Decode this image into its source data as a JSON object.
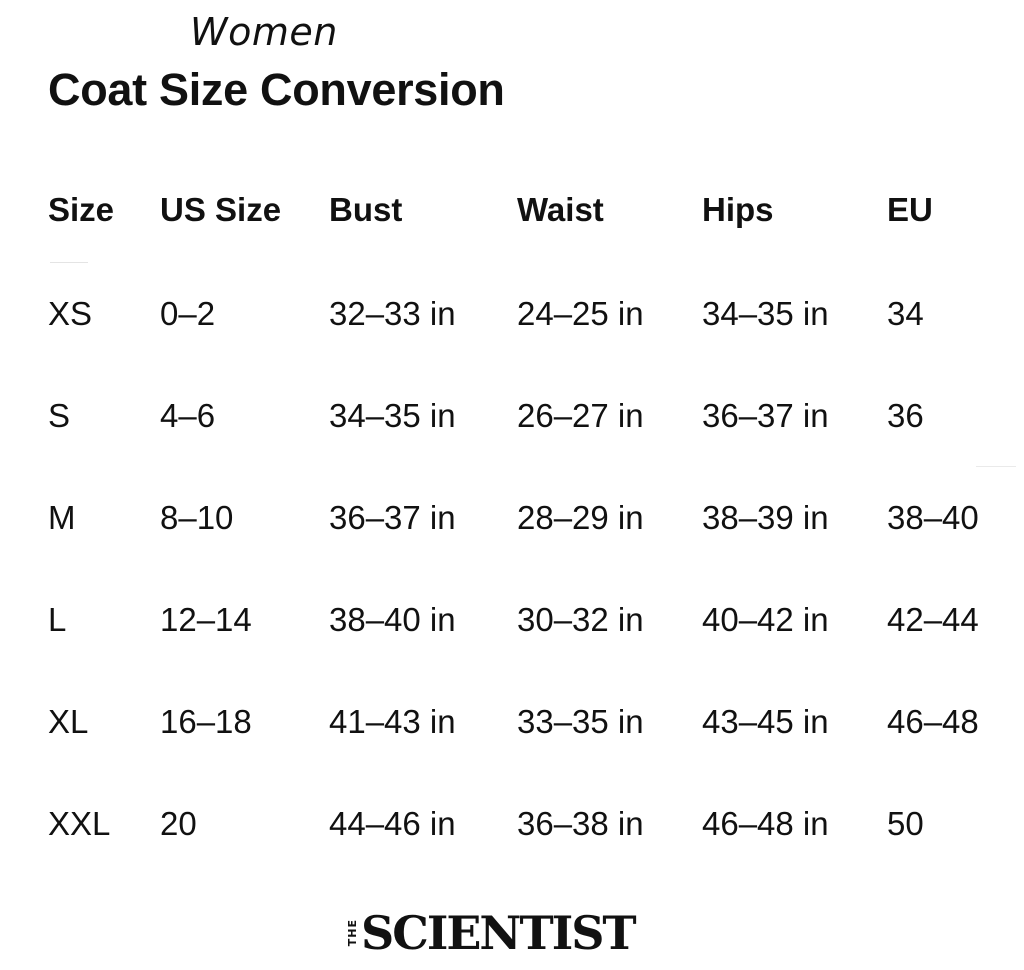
{
  "header": {
    "subtitle": "Women",
    "title": "Coat Size Conversion"
  },
  "table": {
    "columns": [
      "Size",
      "US Size",
      "Bust",
      "Waist",
      "Hips",
      "EU"
    ],
    "rows": [
      [
        "XS",
        "0–2",
        "32–33 in",
        "24–25 in",
        "34–35 in",
        "34"
      ],
      [
        "S",
        "4–6",
        "34–35 in",
        "26–27 in",
        "36–37 in",
        "36"
      ],
      [
        "M",
        "8–10",
        "36–37 in",
        "28–29 in",
        "38–39 in",
        "38–40"
      ],
      [
        "L",
        "12–14",
        "38–40 in",
        "30–32 in",
        "40–42 in",
        "42–44"
      ],
      [
        "XL",
        "16–18",
        "41–43 in",
        "33–35 in",
        "43–45 in",
        "46–48"
      ],
      [
        "XXL",
        "20",
        "44–46 in",
        "36–38 in",
        "46–48 in",
        "50"
      ]
    ]
  },
  "footer": {
    "logo_prefix": "THE",
    "logo_word": "SCIENTIST"
  }
}
